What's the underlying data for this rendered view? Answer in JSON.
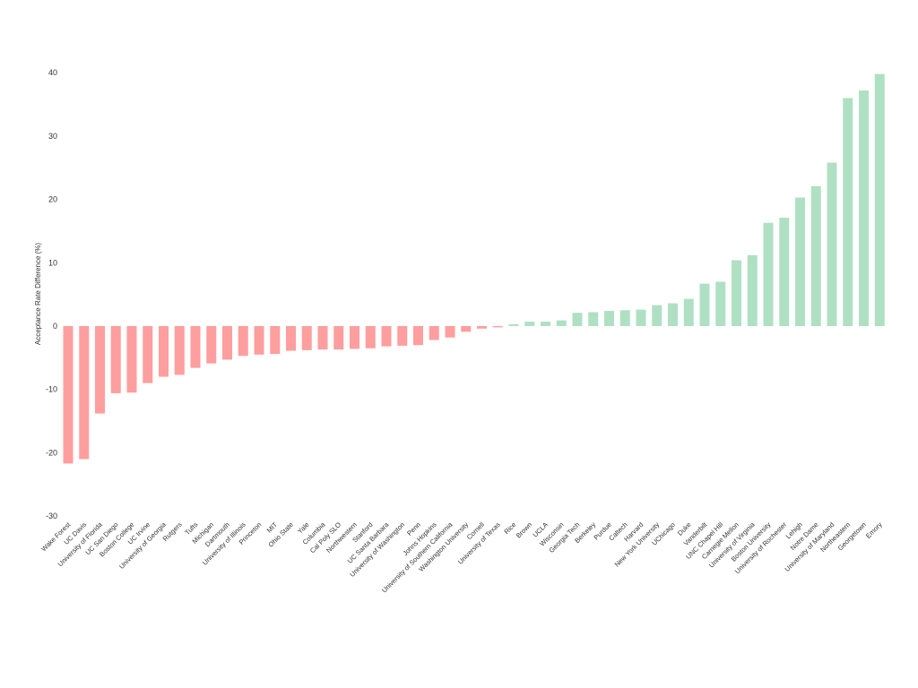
{
  "chart_data": {
    "type": "bar",
    "title": "",
    "xlabel": "",
    "ylabel": "Acceptance Rate Difference (%)",
    "ylim": [
      -30,
      42
    ],
    "yticks": [
      -30,
      -20,
      -10,
      0,
      10,
      20,
      30,
      40
    ],
    "grid": false,
    "legend": "none",
    "colors": {
      "negative": "#ff9e9e",
      "positive": "#b0e0c4"
    },
    "categories": [
      "Wake Forest",
      "UC Davis",
      "University of Florida",
      "UC San Diego",
      "Boston College",
      "UC Irvine",
      "University of Georgia",
      "Rutgers",
      "Tufts",
      "Michigan",
      "Dartmouth",
      "University of Illinois",
      "Princeton",
      "MIT",
      "Ohio State",
      "Yale",
      "Columbia",
      "Cal Poly SLO",
      "Northwestern",
      "Stanford",
      "UC Santa Barbara",
      "University of Washington",
      "Penn",
      "Johns Hopkins",
      "University of Southern California",
      "Washington University",
      "Cornell",
      "University of Texas",
      "Rice",
      "Brown",
      "UCLA",
      "Wisconsin",
      "Georgia Tech",
      "Berkeley",
      "Purdue",
      "Caltech",
      "Harvard",
      "New York University",
      "UChicago",
      "Duke",
      "Vanderbilt",
      "UNC Chapel Hill",
      "Carnegie Mellon",
      "University of Virginia",
      "Boston University",
      "University of Rochester",
      "Lehigh",
      "Notre Dame",
      "University of Maryland",
      "Northeastern",
      "Georgetown",
      "Emory"
    ],
    "values": [
      -21.7,
      -21.0,
      -13.8,
      -10.6,
      -10.5,
      -9.0,
      -8.0,
      -7.7,
      -6.6,
      -5.9,
      -5.3,
      -4.7,
      -4.5,
      -4.4,
      -3.9,
      -3.8,
      -3.7,
      -3.7,
      -3.6,
      -3.5,
      -3.2,
      -3.1,
      -3.0,
      -2.2,
      -1.8,
      -0.9,
      -0.4,
      -0.2,
      0.3,
      0.7,
      0.7,
      0.9,
      2.1,
      2.2,
      2.4,
      2.5,
      2.6,
      3.3,
      3.6,
      4.3,
      6.7,
      7.0,
      10.4,
      11.2,
      16.3,
      17.1,
      20.3,
      22.1,
      25.8,
      36.0,
      37.2,
      39.8
    ]
  }
}
